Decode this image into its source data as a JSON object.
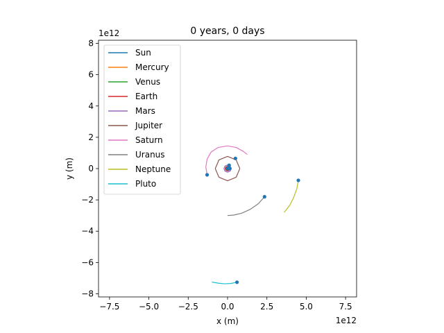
{
  "chart_data": {
    "type": "scatter",
    "title": "0 years, 0 days",
    "xlabel": "x (m)",
    "ylabel": "y (m)",
    "x_offset_label": "1e12",
    "y_offset_label": "1e12",
    "xlim": [
      -8.2,
      8.2
    ],
    "ylim": [
      -8.2,
      8.2
    ],
    "units_scale": 1000000000000.0,
    "x_ticks": [
      -7.5,
      -5.0,
      -2.5,
      0.0,
      2.5,
      5.0,
      7.5
    ],
    "x_tick_labels": [
      "−7.5",
      "−5.0",
      "−2.5",
      "0.0",
      "2.5",
      "5.0",
      "7.5"
    ],
    "y_ticks": [
      -8,
      -6,
      -4,
      -2,
      0,
      2,
      4,
      6,
      8
    ],
    "y_tick_labels": [
      "−8",
      "−6",
      "−4",
      "−2",
      "0",
      "2",
      "4",
      "6",
      "8"
    ],
    "grid": false,
    "legend_position": "top-left",
    "marker_color": "#1f77b4",
    "series": [
      {
        "name": "Sun",
        "color": "#1f77b4",
        "trail": [
          [
            0,
            0
          ],
          [
            0.001,
            0.0005
          ]
        ],
        "position": [
          0,
          0
        ]
      },
      {
        "name": "Mercury",
        "color": "#ff7f0e",
        "trail": [
          [
            0.0576,
            0
          ],
          [
            0.04,
            0.04
          ],
          [
            0,
            0.057
          ],
          [
            -0.04,
            0.04
          ],
          [
            -0.057,
            0
          ],
          [
            -0.04,
            -0.04
          ],
          [
            0,
            -0.057
          ],
          [
            0.04,
            -0.04
          ],
          [
            0.0576,
            0
          ]
        ],
        "position": [
          0.0576,
          0
        ]
      },
      {
        "name": "Venus",
        "color": "#2ca02c",
        "trail": [
          [
            0.108,
            0
          ],
          [
            0.076,
            0.076
          ],
          [
            0,
            0.108
          ],
          [
            -0.076,
            0.076
          ],
          [
            -0.108,
            0
          ],
          [
            -0.076,
            -0.076
          ],
          [
            0,
            -0.108
          ],
          [
            0.076,
            -0.076
          ],
          [
            0.108,
            0
          ]
        ],
        "position": [
          0.108,
          0
        ]
      },
      {
        "name": "Earth",
        "color": "#d62728",
        "trail": [
          [
            0.15,
            0
          ],
          [
            0.106,
            0.106
          ],
          [
            0,
            0.15
          ],
          [
            -0.106,
            0.106
          ],
          [
            -0.15,
            0
          ],
          [
            -0.106,
            -0.106
          ],
          [
            0,
            -0.15
          ],
          [
            0.106,
            -0.106
          ],
          [
            0.15,
            0
          ]
        ],
        "position": [
          0.15,
          0
        ]
      },
      {
        "name": "Mars",
        "color": "#9467bd",
        "trail": [
          [
            0.23,
            0
          ],
          [
            0.163,
            0.163
          ],
          [
            0,
            0.23
          ],
          [
            -0.163,
            0.163
          ],
          [
            -0.23,
            0
          ],
          [
            -0.163,
            -0.163
          ],
          [
            0,
            -0.23
          ],
          [
            0.163,
            -0.163
          ],
          [
            0.23,
            0
          ]
        ],
        "position": [
          0.1,
          0.21
        ]
      },
      {
        "name": "Jupiter",
        "color": "#8c564b",
        "trail": [
          [
            0.78,
            0
          ],
          [
            0.55,
            0.55
          ],
          [
            0,
            0.78
          ],
          [
            -0.55,
            0.55
          ],
          [
            -0.78,
            0
          ],
          [
            -0.55,
            -0.55
          ],
          [
            0,
            -0.78
          ],
          [
            0.55,
            -0.55
          ],
          [
            0.78,
            0
          ]
        ],
        "position": [
          0.5,
          0.65
        ]
      },
      {
        "name": "Saturn",
        "color": "#e377c2",
        "trail": [
          [
            -1.3,
            -0.4
          ],
          [
            -1.38,
            0.1
          ],
          [
            -1.3,
            0.6
          ],
          [
            -1.05,
            1.05
          ],
          [
            -0.6,
            1.35
          ],
          [
            0,
            1.45
          ],
          [
            0.55,
            1.35
          ],
          [
            1.0,
            1.1
          ],
          [
            1.25,
            0.9
          ]
        ],
        "position": [
          -1.3,
          -0.4
        ]
      },
      {
        "name": "Uranus",
        "color": "#7f7f7f",
        "trail": [
          [
            2.35,
            -1.8
          ],
          [
            1.95,
            -2.25
          ],
          [
            1.45,
            -2.6
          ],
          [
            0.9,
            -2.85
          ],
          [
            0.4,
            -2.97
          ],
          [
            0.0,
            -3.0
          ]
        ],
        "position": [
          2.35,
          -1.8
        ]
      },
      {
        "name": "Neptune",
        "color": "#bcbd22",
        "trail": [
          [
            4.5,
            -0.75
          ],
          [
            4.4,
            -1.3
          ],
          [
            4.2,
            -1.85
          ],
          [
            3.95,
            -2.35
          ],
          [
            3.6,
            -2.8
          ]
        ],
        "position": [
          4.5,
          -0.75
        ]
      },
      {
        "name": "Pluto",
        "color": "#17becf",
        "trail": [
          [
            -1.0,
            -7.25
          ],
          [
            -0.6,
            -7.32
          ],
          [
            -0.2,
            -7.36
          ],
          [
            0.2,
            -7.34
          ],
          [
            0.6,
            -7.26
          ]
        ],
        "position": [
          0.6,
          -7.26
        ]
      }
    ]
  }
}
